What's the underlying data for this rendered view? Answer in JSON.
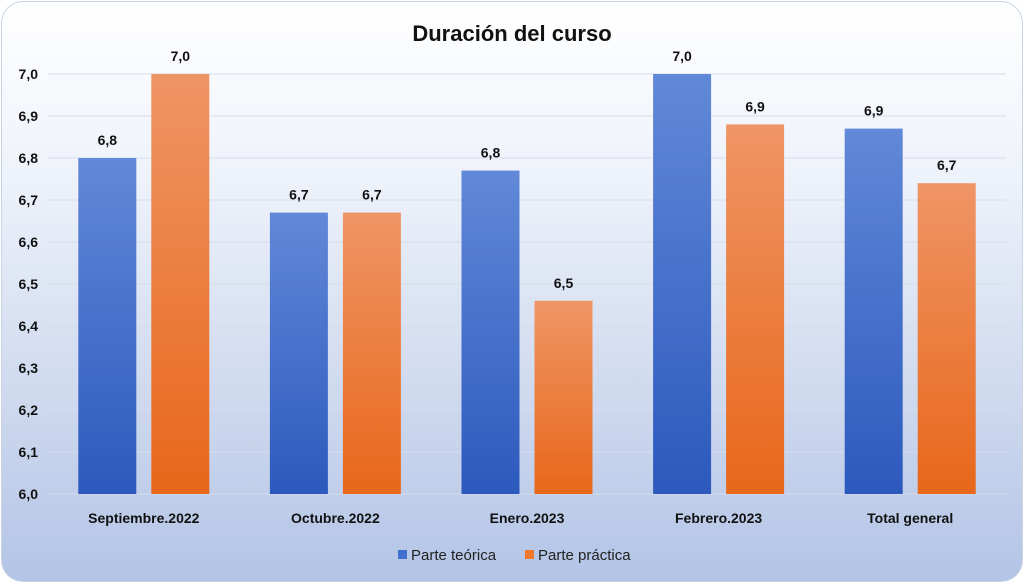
{
  "chart_data": {
    "type": "bar",
    "title": "Duración del curso",
    "xlabel": "",
    "ylabel": "",
    "ylim": [
      6.0,
      7.0
    ],
    "yticks": [
      "6,0",
      "6,1",
      "6,2",
      "6,3",
      "6,4",
      "6,5",
      "6,6",
      "6,7",
      "6,8",
      "6,9",
      "7,0"
    ],
    "categories": [
      "Septiembre.2022",
      "Octubre.2022",
      "Enero.2023",
      "Febrero.2023",
      "Total general"
    ],
    "series": [
      {
        "name": "Parte teórica",
        "color": "#3f6fcf",
        "values": [
          6.8,
          6.67,
          6.77,
          7.0,
          6.87
        ],
        "labels": [
          "6,8",
          "6,7",
          "6,8",
          "7,0",
          "6,9"
        ]
      },
      {
        "name": "Parte práctica",
        "color": "#f0782c",
        "values": [
          7.0,
          6.67,
          6.46,
          6.88,
          6.74
        ],
        "labels": [
          "7,0",
          "6,7",
          "6,5",
          "6,9",
          "6,7"
        ]
      }
    ],
    "grid": true,
    "legend": "bottom"
  }
}
